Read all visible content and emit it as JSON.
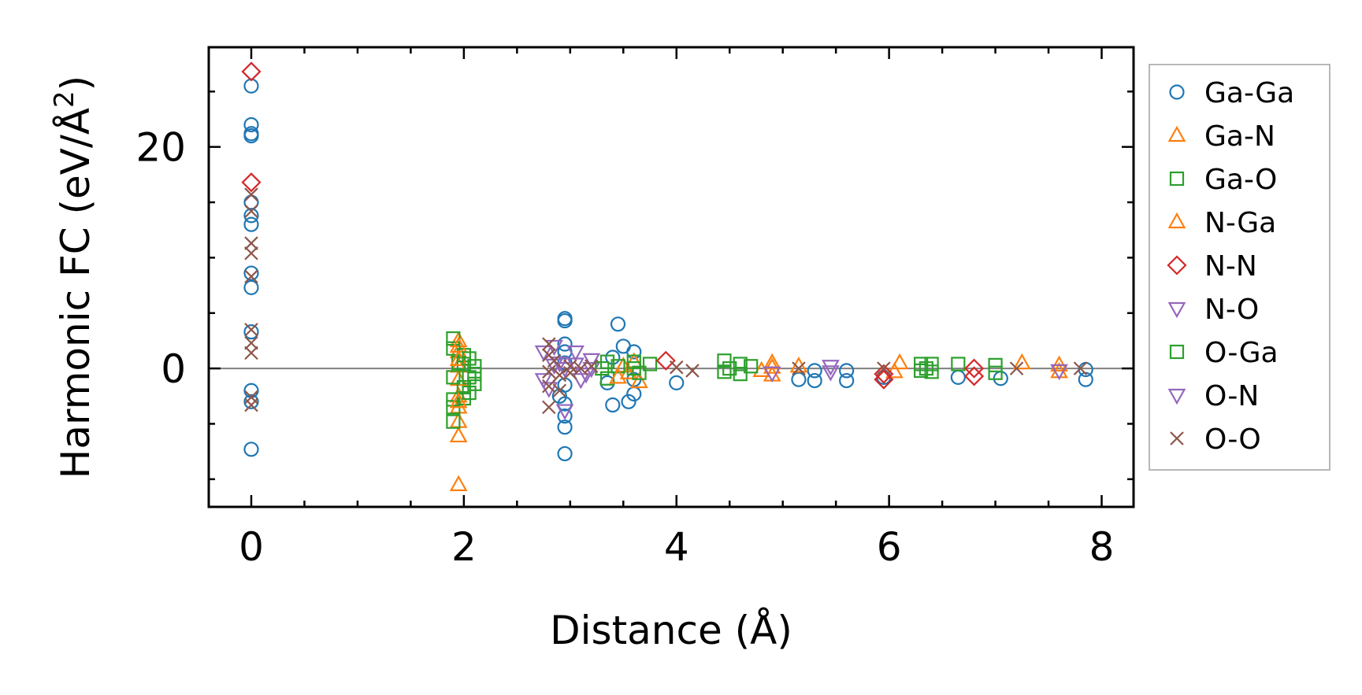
{
  "chart_data": {
    "type": "scatter",
    "title": "",
    "xlabel": "Distance (Å)",
    "ylabel": "Harmonic FC (eV/Å²)",
    "ylabel_parts": {
      "main": "Harmonic FC (eV/Å",
      "sup": "2",
      "close": ")"
    },
    "xlim": [
      -0.4,
      8.3
    ],
    "ylim": [
      -12.5,
      29
    ],
    "x_ticks": [
      0,
      2,
      4,
      6,
      8
    ],
    "x_tick_labels": [
      "0",
      "2",
      "4",
      "6",
      "8"
    ],
    "y_ticks": [
      0,
      20
    ],
    "y_tick_labels": [
      "0",
      "20"
    ],
    "x_minor_step": 0.5,
    "y_minor_step": 5,
    "zero_line": true,
    "grid": false,
    "legend_position": "outside-right",
    "series": [
      {
        "name": "Ga-Ga",
        "marker": "circle",
        "color": "#1f77b4",
        "points": [
          [
            0,
            25.5
          ],
          [
            0,
            22
          ],
          [
            0,
            21.2
          ],
          [
            0,
            21
          ],
          [
            0,
            15
          ],
          [
            0,
            13.8
          ],
          [
            0,
            13
          ],
          [
            0,
            8.6
          ],
          [
            0,
            7.3
          ],
          [
            0,
            3.3
          ],
          [
            0,
            -2
          ],
          [
            0,
            -3
          ],
          [
            0,
            -7.3
          ],
          [
            2.95,
            4.5
          ],
          [
            2.95,
            4.3
          ],
          [
            2.95,
            2.2
          ],
          [
            2.95,
            1.5
          ],
          [
            2.95,
            0.5
          ],
          [
            2.95,
            -1.5
          ],
          [
            2.95,
            -3.2
          ],
          [
            2.95,
            -4.3
          ],
          [
            2.95,
            -5.3
          ],
          [
            2.95,
            -7.7
          ],
          [
            2.9,
            -2.5
          ],
          [
            3.4,
            1
          ],
          [
            3.35,
            -1.3
          ],
          [
            3.45,
            4
          ],
          [
            3.4,
            -3.3
          ],
          [
            3.5,
            2
          ],
          [
            3.6,
            1.5
          ],
          [
            3.6,
            -1
          ],
          [
            3.6,
            -2.3
          ],
          [
            3.55,
            -3
          ],
          [
            4.0,
            -1.3
          ],
          [
            5.15,
            -1
          ],
          [
            5.3,
            -0.2
          ],
          [
            5.3,
            -1.1
          ],
          [
            5.6,
            -0.2
          ],
          [
            5.6,
            -1.1
          ],
          [
            5.95,
            -0.8
          ],
          [
            6.65,
            -0.8
          ],
          [
            7.05,
            -0.9
          ],
          [
            7.85,
            -0.1
          ],
          [
            7.85,
            -1
          ]
        ]
      },
      {
        "name": "Ga-N",
        "marker": "triangle-up",
        "color": "#ff7f0e",
        "points": [
          [
            1.95,
            -10.5
          ],
          [
            1.95,
            -6.1
          ],
          [
            1.95,
            -4.8
          ],
          [
            1.95,
            -3.5
          ],
          [
            1.95,
            -2.5
          ],
          [
            1.95,
            -1
          ],
          [
            1.95,
            0.2
          ],
          [
            1.95,
            1.5
          ],
          [
            1.95,
            2.5
          ],
          [
            3.5,
            0.2
          ],
          [
            3.55,
            -0.4
          ],
          [
            3.65,
            -1.2
          ],
          [
            3.6,
            0.6
          ],
          [
            4.9,
            0.5
          ],
          [
            4.9,
            -0.6
          ],
          [
            4.8,
            -0.2
          ],
          [
            5.15,
            0.2
          ],
          [
            6.1,
            0.5
          ],
          [
            6.05,
            -0.3
          ],
          [
            7.25,
            0.5
          ],
          [
            7.6,
            0.3
          ],
          [
            7.6,
            -0.3
          ]
        ]
      },
      {
        "name": "Ga-O",
        "marker": "square",
        "color": "#2ca02c",
        "points": [
          [
            1.9,
            2.7
          ],
          [
            1.9,
            1.8
          ],
          [
            1.9,
            -0.8
          ],
          [
            1.9,
            -2.8
          ],
          [
            1.9,
            -3.5
          ],
          [
            1.9,
            -4.8
          ],
          [
            1.95,
            0.5
          ],
          [
            2.0,
            1.2
          ],
          [
            2.0,
            0.4
          ],
          [
            2.0,
            -1.7
          ],
          [
            2.0,
            -2.7
          ],
          [
            2.05,
            -0.8
          ],
          [
            2.1,
            0.2
          ],
          [
            2.1,
            -0.5
          ],
          [
            2.1,
            -1.4
          ],
          [
            3.35,
            0.6
          ],
          [
            3.35,
            -0.9
          ],
          [
            3.45,
            0.2
          ],
          [
            3.6,
            0.6
          ],
          [
            3.65,
            -0.4
          ],
          [
            3.75,
            0.4
          ],
          [
            4.45,
            0.7
          ],
          [
            4.45,
            -0.3
          ],
          [
            4.6,
            0.4
          ],
          [
            4.6,
            -0.5
          ],
          [
            4.7,
            0.2
          ],
          [
            6.3,
            0.4
          ],
          [
            6.3,
            -0.2
          ],
          [
            6.4,
            0.4
          ],
          [
            6.4,
            -0.3
          ],
          [
            6.65,
            0.4
          ],
          [
            7.0,
            0.3
          ],
          [
            7.0,
            -0.4
          ]
        ]
      },
      {
        "name": "N-Ga",
        "marker": "triangle-up",
        "color": "#ff7f0e",
        "points": [
          [
            1.95,
            -3
          ],
          [
            1.95,
            0.8
          ],
          [
            1.95,
            2
          ],
          [
            3.45,
            -0.8
          ],
          [
            4.9,
            0.1
          ]
        ]
      },
      {
        "name": "N-N",
        "marker": "diamond",
        "color": "#d62728",
        "points": [
          [
            0,
            26.8
          ],
          [
            0,
            16.8
          ],
          [
            3.9,
            0.7
          ],
          [
            5.95,
            -0.5
          ],
          [
            5.95,
            -1
          ],
          [
            6.8,
            0
          ],
          [
            6.8,
            -0.7
          ]
        ]
      },
      {
        "name": "N-O",
        "marker": "triangle-down",
        "color": "#9467bd",
        "points": [
          [
            2.75,
            1.5
          ],
          [
            2.75,
            -1
          ],
          [
            2.8,
            -1.8
          ],
          [
            2.85,
            2
          ],
          [
            2.9,
            0.5
          ],
          [
            2.95,
            -3.8
          ],
          [
            3.05,
            1.5
          ],
          [
            3.1,
            -1
          ],
          [
            3.2,
            0.8
          ],
          [
            3.2,
            0
          ],
          [
            4.9,
            -0.4
          ],
          [
            5.45,
            -0.3
          ],
          [
            7.6,
            -0.2
          ]
        ]
      },
      {
        "name": "O-Ga",
        "marker": "square",
        "color": "#2ca02c",
        "points": [
          [
            2.05,
            0.9
          ],
          [
            2.05,
            -2.2
          ],
          [
            3.3,
            0
          ],
          [
            3.6,
            0
          ],
          [
            4.5,
            0
          ],
          [
            6.35,
            0
          ]
        ]
      },
      {
        "name": "O-N",
        "marker": "triangle-down",
        "color": "#9467bd",
        "points": [
          [
            2.85,
            0.3
          ],
          [
            2.95,
            0
          ],
          [
            3.05,
            0.4
          ],
          [
            3.15,
            -0.5
          ],
          [
            5.45,
            0.2
          ]
        ]
      },
      {
        "name": "O-O",
        "marker": "x",
        "color": "#8c564b",
        "points": [
          [
            0,
            15.7
          ],
          [
            0,
            14.2
          ],
          [
            0,
            11.3
          ],
          [
            0,
            10.4
          ],
          [
            0,
            8.3
          ],
          [
            0,
            3.5
          ],
          [
            0,
            2.3
          ],
          [
            0,
            1.4
          ],
          [
            0,
            -2.6
          ],
          [
            0,
            -3.3
          ],
          [
            2.8,
            2.2
          ],
          [
            2.8,
            1.2
          ],
          [
            2.8,
            -0.3
          ],
          [
            2.8,
            -1.6
          ],
          [
            2.8,
            -3.5
          ],
          [
            2.85,
            0.7
          ],
          [
            2.9,
            -0.6
          ],
          [
            2.9,
            -2
          ],
          [
            3.0,
            0.2
          ],
          [
            3.0,
            -0.4
          ],
          [
            3.1,
            0
          ],
          [
            3.2,
            0.2
          ],
          [
            4.0,
            0.1
          ],
          [
            4.15,
            -0.2
          ],
          [
            5.15,
            0
          ],
          [
            5.95,
            0
          ],
          [
            7.2,
            0
          ],
          [
            7.8,
            0
          ]
        ]
      }
    ]
  }
}
